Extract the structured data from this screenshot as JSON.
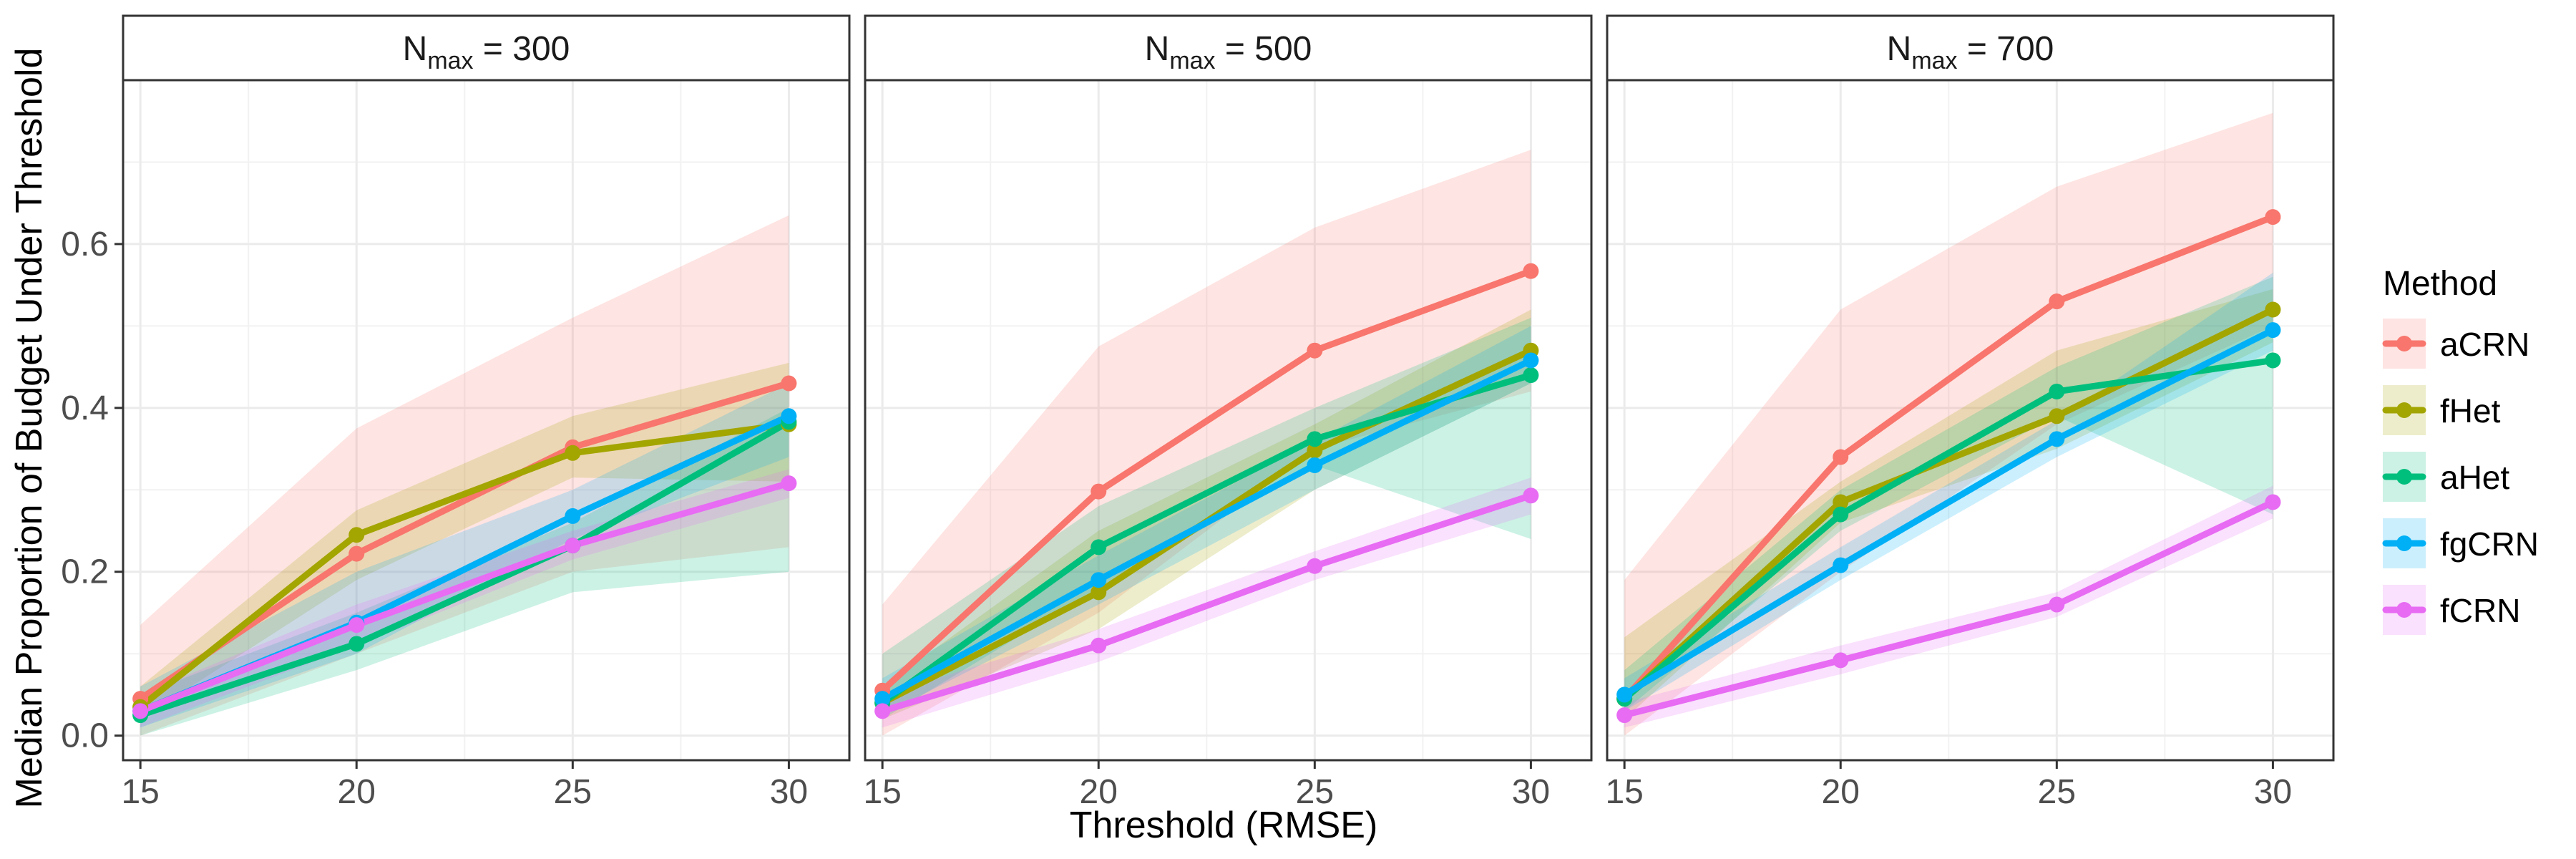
{
  "chart_data": {
    "type": "line",
    "xlabel": "Threshold (RMSE)",
    "ylabel": "Median Proportion of Budget Under Threshold",
    "xlim": [
      14.6,
      31.4
    ],
    "ylim": [
      -0.03,
      0.8
    ],
    "x_ticks": [
      15,
      20,
      25,
      30
    ],
    "y_ticks": [
      0.0,
      0.2,
      0.4,
      0.6
    ],
    "x_tick_labels": [
      "15",
      "20",
      "25",
      "30"
    ],
    "y_tick_labels": [
      "0.0",
      "0.2",
      "0.4",
      "0.6"
    ],
    "grid": true,
    "legend": {
      "title": "Method",
      "position": "right",
      "entries": [
        "aCRN",
        "fHet",
        "aHet",
        "fgCRN",
        "fCRN"
      ]
    },
    "colors": {
      "aCRN": "#F8766D",
      "fHet": "#A3A500",
      "aHet": "#00BF7D",
      "fgCRN": "#00B0F6",
      "fCRN": "#E76BF3"
    },
    "x": [
      15,
      20,
      25,
      30
    ],
    "panels": [
      {
        "strip_main": "N",
        "strip_sub": "max",
        "strip_value": " = 300",
        "series": [
          {
            "name": "aCRN",
            "values": [
              0.045,
              0.222,
              0.352,
              0.43
            ],
            "lower": [
              0.0,
              0.1,
              0.2,
              0.23
            ],
            "upper": [
              0.135,
              0.375,
              0.51,
              0.635
            ]
          },
          {
            "name": "fHet",
            "values": [
              0.035,
              0.245,
              0.345,
              0.38
            ],
            "lower": [
              0.02,
              0.19,
              0.315,
              0.31
            ],
            "upper": [
              0.06,
              0.275,
              0.39,
              0.455
            ]
          },
          {
            "name": "aHet",
            "values": [
              0.025,
              0.112,
              0.232,
              0.383
            ],
            "lower": [
              0.0,
              0.08,
              0.175,
              0.2
            ],
            "upper": [
              0.05,
              0.15,
              0.26,
              0.4
            ]
          },
          {
            "name": "fgCRN",
            "values": [
              0.03,
              0.138,
              0.268,
              0.39
            ],
            "lower": [
              0.01,
              0.1,
              0.24,
              0.34
            ],
            "upper": [
              0.06,
              0.2,
              0.3,
              0.43
            ]
          },
          {
            "name": "fCRN",
            "values": [
              0.03,
              0.135,
              0.232,
              0.308
            ],
            "lower": [
              0.01,
              0.11,
              0.215,
              0.29
            ],
            "upper": [
              0.05,
              0.16,
              0.25,
              0.325
            ]
          }
        ]
      },
      {
        "strip_main": "N",
        "strip_sub": "max",
        "strip_value": " = 500",
        "series": [
          {
            "name": "aCRN",
            "values": [
              0.055,
              0.298,
              0.47,
              0.567
            ],
            "lower": [
              0.0,
              0.15,
              0.35,
              0.42
            ],
            "upper": [
              0.16,
              0.475,
              0.62,
              0.715
            ]
          },
          {
            "name": "fHet",
            "values": [
              0.04,
              0.175,
              0.348,
              0.47
            ],
            "lower": [
              0.02,
              0.13,
              0.3,
              0.43
            ],
            "upper": [
              0.06,
              0.25,
              0.38,
              0.52
            ]
          },
          {
            "name": "aHet",
            "values": [
              0.04,
              0.23,
              0.362,
              0.44
            ],
            "lower": [
              0.02,
              0.18,
              0.33,
              0.24
            ],
            "upper": [
              0.1,
              0.28,
              0.4,
              0.51
            ]
          },
          {
            "name": "fgCRN",
            "values": [
              0.045,
              0.19,
              0.33,
              0.458
            ],
            "lower": [
              0.025,
              0.16,
              0.3,
              0.43
            ],
            "upper": [
              0.07,
              0.22,
              0.36,
              0.5
            ]
          },
          {
            "name": "fCRN",
            "values": [
              0.03,
              0.11,
              0.207,
              0.293
            ],
            "lower": [
              0.01,
              0.09,
              0.19,
              0.27
            ],
            "upper": [
              0.05,
              0.13,
              0.225,
              0.315
            ]
          }
        ]
      },
      {
        "strip_main": "N",
        "strip_sub": "max",
        "strip_value": " = 700",
        "series": [
          {
            "name": "aCRN",
            "values": [
              0.045,
              0.34,
              0.53,
              0.633
            ],
            "lower": [
              0.0,
              0.2,
              0.38,
              0.5
            ],
            "upper": [
              0.19,
              0.52,
              0.67,
              0.76
            ]
          },
          {
            "name": "fHet",
            "values": [
              0.045,
              0.285,
              0.39,
              0.52
            ],
            "lower": [
              0.02,
              0.26,
              0.35,
              0.48
            ],
            "upper": [
              0.12,
              0.31,
              0.47,
              0.545
            ]
          },
          {
            "name": "aHet",
            "values": [
              0.045,
              0.27,
              0.42,
              0.458
            ],
            "lower": [
              0.03,
              0.25,
              0.39,
              0.27
            ],
            "upper": [
              0.08,
              0.3,
              0.45,
              0.56
            ]
          },
          {
            "name": "fgCRN",
            "values": [
              0.05,
              0.208,
              0.362,
              0.495
            ],
            "lower": [
              0.03,
              0.19,
              0.34,
              0.47
            ],
            "upper": [
              0.07,
              0.23,
              0.385,
              0.565
            ]
          },
          {
            "name": "fCRN",
            "values": [
              0.025,
              0.092,
              0.16,
              0.285
            ],
            "lower": [
              0.01,
              0.075,
              0.145,
              0.265
            ],
            "upper": [
              0.04,
              0.11,
              0.175,
              0.305
            ]
          }
        ]
      }
    ]
  }
}
